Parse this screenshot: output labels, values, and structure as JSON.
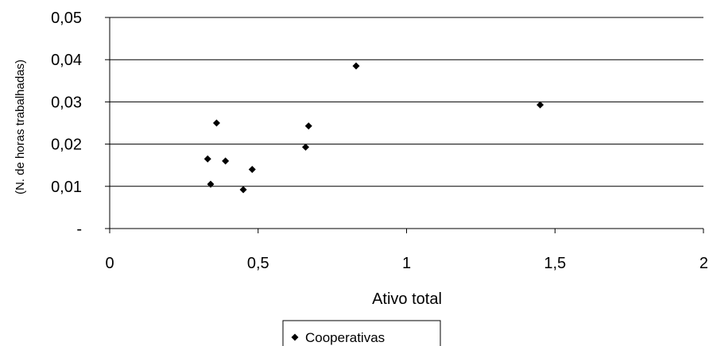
{
  "chart_data": {
    "type": "scatter",
    "title": "",
    "xlabel": "Ativo total",
    "ylabel": "(N. de horas trabalhadas)",
    "xlim": [
      0,
      2
    ],
    "ylim": [
      0,
      0.05
    ],
    "grid": "horizontal",
    "legend_position": "bottom",
    "x_ticks": [
      0,
      0.5,
      1,
      1.5,
      2
    ],
    "x_tick_labels": [
      "0",
      "0,5",
      "1",
      "1,5",
      "2"
    ],
    "y_ticks": [
      0,
      0.01,
      0.02,
      0.03,
      0.04,
      0.05
    ],
    "y_tick_labels": [
      "-",
      "0,01",
      "0,02",
      "0,03",
      "0,04",
      "0,05"
    ],
    "series": [
      {
        "name": "Cooperativas",
        "marker": "diamond",
        "color": "#000000",
        "points": [
          {
            "x": 0.33,
            "y": 0.0165
          },
          {
            "x": 0.34,
            "y": 0.0105
          },
          {
            "x": 0.36,
            "y": 0.025
          },
          {
            "x": 0.39,
            "y": 0.016
          },
          {
            "x": 0.45,
            "y": 0.0092
          },
          {
            "x": 0.48,
            "y": 0.014
          },
          {
            "x": 0.66,
            "y": 0.0193
          },
          {
            "x": 0.67,
            "y": 0.0243
          },
          {
            "x": 0.83,
            "y": 0.0385
          },
          {
            "x": 1.45,
            "y": 0.0293
          }
        ]
      }
    ]
  }
}
